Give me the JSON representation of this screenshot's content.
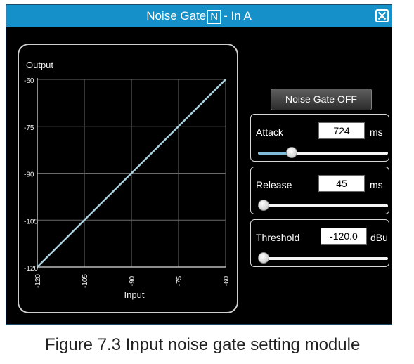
{
  "window": {
    "title_prefix": "Noise Gate",
    "title_badge": "N",
    "title_suffix": "- In A",
    "close_icon": "close-icon"
  },
  "graph": {
    "ylabel": "Output",
    "xlabel": "Input",
    "y_ticks": [
      "-60",
      "-75",
      "-90",
      "-105",
      "-120"
    ],
    "x_ticks": [
      "-120",
      "-105",
      "-90",
      "-75",
      "-60"
    ],
    "range": [
      -120,
      -60
    ],
    "tick_values": [
      -120,
      -105,
      -90,
      -75,
      -60
    ],
    "line_color": "#a9d0dd"
  },
  "gate_button": {
    "label": "Noise Gate OFF"
  },
  "attack": {
    "label": "Attack",
    "value": "724",
    "unit": "ms",
    "slider_fraction": 0.26
  },
  "release": {
    "label": "Release",
    "value": "45",
    "unit": "ms",
    "slider_fraction": 0.0
  },
  "threshold": {
    "label": "Threshold",
    "value": "-120.0",
    "unit": "dBu",
    "slider_fraction": 0.0
  },
  "caption": "Figure 7.3 Input noise gate setting module"
}
